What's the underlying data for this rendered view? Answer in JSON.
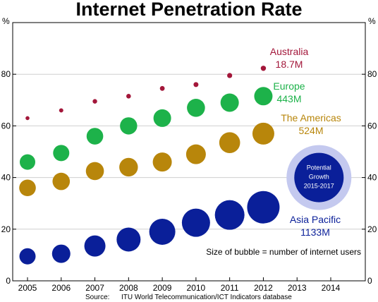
{
  "chart_data": {
    "type": "scatter",
    "title": "Internet Penetration Rate",
    "y_unit_left": "%",
    "y_unit_right": "%",
    "x_ticks": [
      "2005",
      "2006",
      "2007",
      "2008",
      "2009",
      "2010",
      "2011",
      "2012",
      "2013",
      "2014"
    ],
    "xlim": [
      2005,
      2014
    ],
    "ylim": [
      0,
      100
    ],
    "y_ticks": [
      0,
      20,
      40,
      60,
      80
    ],
    "grid": "horizontal",
    "bubble_size_note": "Size of bubble = number of internet users",
    "source_label": "Source:",
    "source_text": "ITU World Telecommunication/ICT Indicators database",
    "series": [
      {
        "name": "Australia",
        "users_label": "18.7M",
        "color": "#a3173a",
        "x": [
          2005,
          2006,
          2007,
          2008,
          2009,
          2010,
          2011,
          2012
        ],
        "y": [
          63,
          66,
          69.5,
          71.5,
          74.5,
          76,
          79.5,
          82.3
        ],
        "size": [
          2.8,
          3.0,
          3.2,
          3.3,
          3.4,
          3.5,
          3.6,
          3.7
        ]
      },
      {
        "name": "Europe",
        "users_label": "443M",
        "color": "#1db24a",
        "x": [
          2005,
          2006,
          2007,
          2008,
          2009,
          2010,
          2011,
          2012
        ],
        "y": [
          46,
          49.5,
          56,
          60,
          63,
          67,
          69,
          71.5
        ],
        "size": [
          11,
          11.5,
          11.8,
          12.2,
          12.5,
          12.8,
          13,
          13
        ]
      },
      {
        "name": "The Americas",
        "users_label": "524M",
        "color": "#b8860b",
        "x": [
          2005,
          2006,
          2007,
          2008,
          2009,
          2010,
          2011,
          2012
        ],
        "y": [
          36,
          38.5,
          42.5,
          44,
          46,
          49,
          53.5,
          57
        ],
        "size": [
          11.8,
          12.3,
          12.8,
          13.2,
          13.5,
          14,
          14.8,
          15.5
        ]
      },
      {
        "name": "Asia Pacific",
        "users_label": "1133M",
        "color": "#0a1f99",
        "x": [
          2005,
          2006,
          2007,
          2008,
          2009,
          2010,
          2011,
          2012
        ],
        "y": [
          9.5,
          10.5,
          13.5,
          16,
          19,
          22.5,
          25.5,
          28.5
        ],
        "size": [
          11.5,
          13,
          15,
          17,
          18.5,
          20,
          21,
          23
        ]
      }
    ],
    "potential_growth": {
      "label_lines": [
        "Potential",
        "Growth",
        "2015-2017"
      ],
      "x": 2013.65,
      "y": 40
    }
  }
}
